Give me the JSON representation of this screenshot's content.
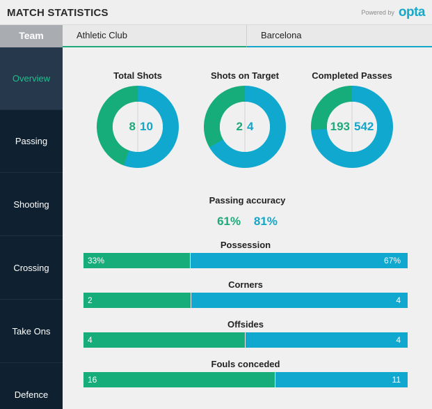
{
  "header": {
    "title": "MATCH STATISTICS",
    "powered_by": "Powered by",
    "logo": "opta"
  },
  "teams": {
    "label": "Team",
    "home": "Athletic Club",
    "away": "Barcelona"
  },
  "colors": {
    "home": "#17ad7a",
    "away": "#10a8cf",
    "sidebar": "#0f2130",
    "active": "#26384b"
  },
  "sidebar": {
    "items": [
      {
        "label": "Overview",
        "active": true
      },
      {
        "label": "Passing"
      },
      {
        "label": "Shooting"
      },
      {
        "label": "Crossing"
      },
      {
        "label": "Take Ons"
      },
      {
        "label": "Defence"
      }
    ]
  },
  "donuts": [
    {
      "title": "Total Shots",
      "home": 8,
      "away": 10
    },
    {
      "title": "Shots on Target",
      "home": 2,
      "away": 4
    },
    {
      "title": "Completed Passes",
      "home": 193,
      "away": 542
    }
  ],
  "passing_accuracy": {
    "title": "Passing accuracy",
    "home": "61%",
    "away": "81%"
  },
  "bars": [
    {
      "title": "Possession",
      "home": 33,
      "away": 67,
      "home_label": "33%",
      "away_label": "67%"
    },
    {
      "title": "Corners",
      "home": 2,
      "away": 4,
      "home_label": "2",
      "away_label": "4"
    },
    {
      "title": "Offsides",
      "home": 4,
      "away": 4,
      "home_label": "4",
      "away_label": "4"
    },
    {
      "title": "Fouls conceded",
      "home": 16,
      "away": 11,
      "home_label": "16",
      "away_label": "11"
    }
  ]
}
